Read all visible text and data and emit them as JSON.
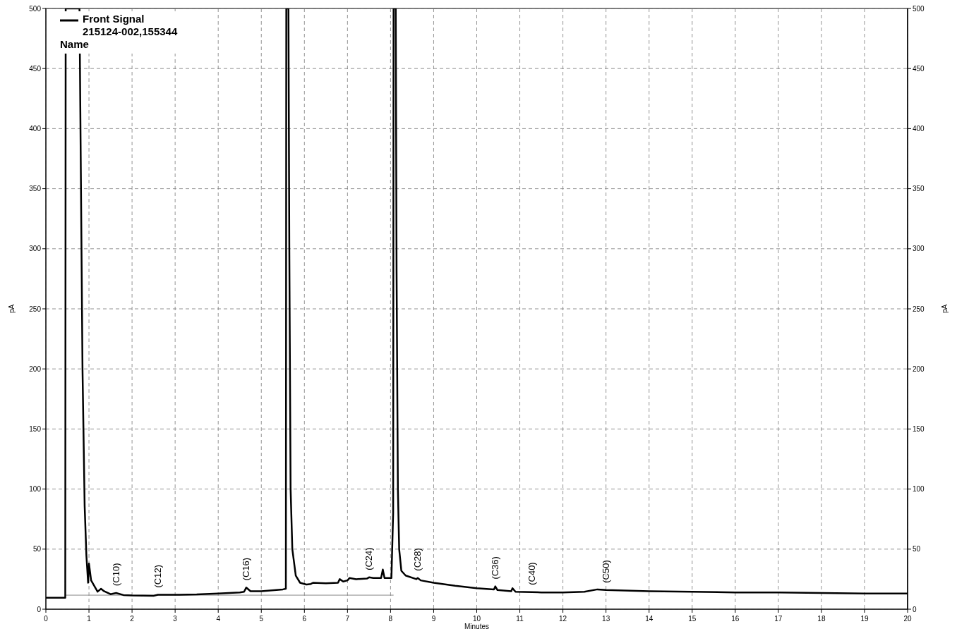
{
  "chart_data": {
    "type": "line",
    "xlabel": "Minutes",
    "ylabel": "pA",
    "y2label": "pA",
    "xlim": [
      0,
      20
    ],
    "xticks": [
      0,
      1,
      2,
      3,
      4,
      5,
      6,
      7,
      8,
      9,
      10,
      11,
      12,
      13,
      14,
      15,
      16,
      17,
      18,
      19,
      20
    ],
    "ylim": [
      0,
      500
    ],
    "yticks": [
      0,
      50,
      100,
      150,
      200,
      250,
      300,
      350,
      400,
      450,
      500
    ],
    "y2lim": [
      0,
      500
    ],
    "y2ticks": [
      0,
      50,
      100,
      150,
      200,
      250,
      300,
      350,
      400,
      450,
      500
    ],
    "grid": true,
    "legend": "top left",
    "line_style": "solid",
    "series": [
      {
        "name": "Front Signal",
        "color": "#000000",
        "x": [
          0,
          0.45,
          0.46,
          0.78,
          0.85,
          0.9,
          0.94,
          0.98,
          1.0,
          1.05,
          1.2,
          1.28,
          1.35,
          1.5,
          1.63,
          1.8,
          2.0,
          2.5,
          2.6,
          3.0,
          3.5,
          4.0,
          4.5,
          4.6,
          4.65,
          4.75,
          5.0,
          5.5,
          5.57,
          5.58,
          5.63,
          5.65,
          5.68,
          5.72,
          5.8,
          5.9,
          6.0,
          6.05,
          6.15,
          6.2,
          6.5,
          6.78,
          6.82,
          6.9,
          7.0,
          7.05,
          7.2,
          7.45,
          7.5,
          7.6,
          7.78,
          7.82,
          7.86,
          8.02,
          8.06,
          8.07,
          8.12,
          8.14,
          8.17,
          8.2,
          8.25,
          8.35,
          8.6,
          8.63,
          8.7,
          9.0,
          9.5,
          10.0,
          10.4,
          10.43,
          10.48,
          10.8,
          10.83,
          10.9,
          11.28,
          11.5,
          12.0,
          12.5,
          12.8,
          13.0,
          14.0,
          15.0,
          16.0,
          17.0,
          18.0,
          19.0,
          20.0
        ],
        "values": [
          9.5,
          9.5,
          500,
          500,
          200,
          86,
          45,
          22,
          38,
          24,
          14.6,
          17,
          15,
          12.5,
          13.5,
          11.8,
          11.5,
          11.2,
          12,
          12,
          12.3,
          13,
          14,
          14.5,
          18,
          15,
          15,
          16.5,
          17,
          500,
          500,
          300,
          100,
          50,
          28,
          22,
          21,
          20.5,
          21,
          22,
          21.5,
          22,
          25,
          23,
          24,
          26,
          25,
          25.5,
          26.5,
          26,
          26,
          33,
          26,
          26,
          80,
          500,
          500,
          280,
          100,
          50,
          32,
          28,
          25,
          26,
          24,
          22,
          19.5,
          17.5,
          16.5,
          19,
          16,
          15,
          17.5,
          14.5,
          14.2,
          14,
          14,
          14.5,
          16.5,
          16,
          15,
          14.5,
          14,
          14,
          13.5,
          13,
          13
        ]
      },
      {
        "color": "#888888",
        "x": [
          0.46,
          8.07
        ],
        "values": [
          11.7,
          11.7
        ]
      }
    ],
    "annotations": [
      "215124-002,155344",
      "Name",
      {
        "text": "(C10)",
        "x": 1.63,
        "y": 13.5
      },
      {
        "text": "(C12)",
        "x": 2.6,
        "y": 12
      },
      {
        "text": "(C16)",
        "x": 4.65,
        "y": 18
      },
      {
        "text": "(C24)",
        "x": 7.5,
        "y": 26.5
      },
      {
        "text": "(C28)",
        "x": 8.63,
        "y": 26
      },
      {
        "text": "(C36)",
        "x": 10.43,
        "y": 19
      },
      {
        "text": "(C40)",
        "x": 11.28,
        "y": 14.2
      },
      {
        "text": "(C50)",
        "x": 13.0,
        "y": 16
      }
    ]
  }
}
